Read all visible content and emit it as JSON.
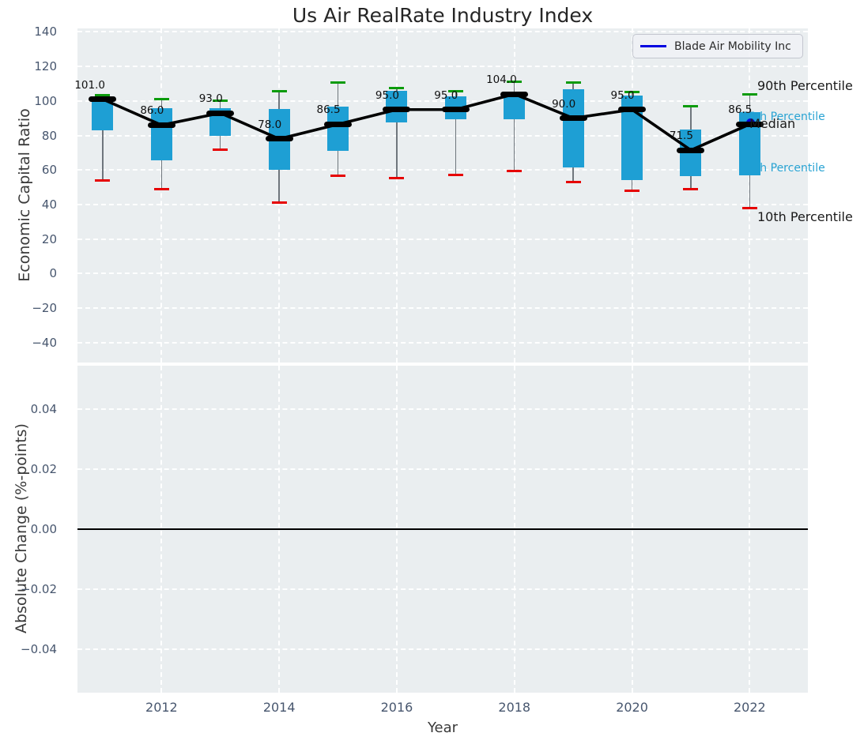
{
  "title": "Us Air RealRate Industry Index",
  "legend": {
    "label": "Blade Air Mobility Inc",
    "line_color": "#0202e0"
  },
  "colors": {
    "axes_background": "#eaeef0",
    "grid": "#ffffff",
    "box_fill": "#1e9fd4",
    "p90_cap": "#0b9b0b",
    "p10_cap": "#e60000",
    "whisker": "#6f767d",
    "median": "#000000",
    "company_line": "#0202e0",
    "cyan_annotation": "#29a3d3",
    "tick_text": "#47566e"
  },
  "chart_data": [
    {
      "type": "box",
      "title": "Us Air RealRate Industry Index",
      "xlabel": "Year",
      "ylabel": "Economic Capital Ratio",
      "ylim": [
        -51.5,
        142
      ],
      "xlim": [
        2010.57,
        2022.99
      ],
      "grid": true,
      "legend_position": "upper right",
      "legend_entries": [
        "Blade Air Mobility Inc"
      ],
      "years": [
        2011,
        2012,
        2013,
        2014,
        2015,
        2016,
        2017,
        2018,
        2019,
        2020,
        2021,
        2022
      ],
      "series": {
        "p10": [
          54,
          49,
          72,
          41,
          56.5,
          55.5,
          57,
          59.5,
          53,
          48,
          49,
          38
        ],
        "q1": [
          83,
          65.5,
          80,
          60,
          71,
          87.5,
          89.5,
          89.5,
          61.5,
          54,
          56.5,
          57
        ],
        "median": [
          101,
          86,
          93,
          78,
          86.5,
          95,
          95,
          104,
          90,
          95,
          71.5,
          86.5
        ],
        "q3": [
          101,
          96,
          96,
          95.5,
          96.5,
          106,
          102.5,
          105,
          107,
          103,
          83.5,
          93.5
        ],
        "p90": [
          103.5,
          101,
          100,
          105.5,
          110.5,
          107.5,
          105.5,
          111,
          110.5,
          105,
          97,
          104
        ]
      },
      "median_labels": [
        "101.0",
        "86.0",
        "93.0",
        "78.0",
        "86.5",
        "95.0",
        "95.0",
        "104.0",
        "90.0",
        "95.0",
        "71.5",
        "86.5"
      ],
      "company_overlay": {
        "name": "Blade Air Mobility Inc",
        "year": 2022,
        "value": 86.5
      },
      "y_ticks": {
        "values": [
          140,
          120,
          100,
          80,
          60,
          40,
          20,
          0,
          -20,
          -40
        ],
        "labels": [
          "140",
          "120",
          "100",
          "80",
          "60",
          "40",
          "20",
          "0",
          "−20",
          "−40"
        ]
      },
      "x_ticks": {
        "values": [
          2012,
          2014,
          2016,
          2018,
          2020,
          2022
        ],
        "labels": [
          "2012",
          "2014",
          "2016",
          "2018",
          "2020",
          "2022"
        ]
      },
      "annotations": [
        {
          "text": "90th Percentile",
          "target": "p90",
          "emphasis": "dark"
        },
        {
          "text": "75th Percentile",
          "target": "q3",
          "emphasis": "cyan"
        },
        {
          "text": "Median",
          "target": "median",
          "emphasis": "dark"
        },
        {
          "text": "25th Percentile",
          "target": "q1",
          "emphasis": "cyan"
        },
        {
          "text": "10th Percentile",
          "target": "p10",
          "emphasis": "dark"
        }
      ]
    },
    {
      "type": "line",
      "xlabel": "Year",
      "ylabel": "Absolute Change (%-points)",
      "ylim": [
        -0.0545,
        0.0545
      ],
      "grid": true,
      "zero_line": 0.0,
      "series": [],
      "y_ticks": {
        "values": [
          0.04,
          0.02,
          0.0,
          -0.02,
          -0.04
        ],
        "labels": [
          "0.04",
          "0.02",
          "0.00",
          "−0.02",
          "−0.04"
        ]
      },
      "x_ticks": {
        "values": [
          2012,
          2014,
          2016,
          2018,
          2020,
          2022
        ],
        "labels": [
          "2012",
          "2014",
          "2016",
          "2018",
          "2020",
          "2022"
        ]
      }
    }
  ]
}
